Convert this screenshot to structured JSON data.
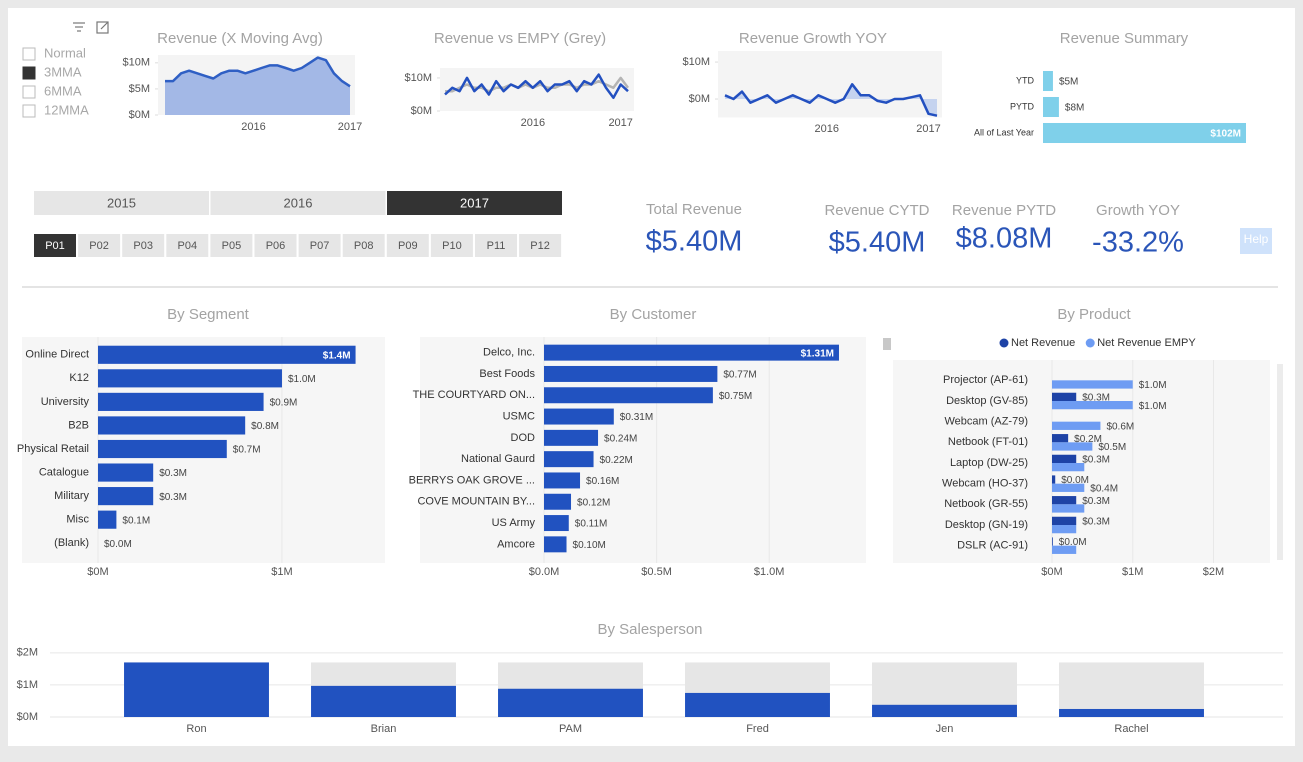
{
  "slicer": {
    "options": [
      "Normal",
      "3MMA",
      "6MMA",
      "12MMA"
    ],
    "selected": 1
  },
  "years": {
    "options": [
      "2015",
      "2016",
      "2017"
    ],
    "selected": 2
  },
  "periods": {
    "options": [
      "P01",
      "P02",
      "P03",
      "P04",
      "P05",
      "P06",
      "P07",
      "P08",
      "P09",
      "P10",
      "P11",
      "P12"
    ],
    "selected": 0
  },
  "kpis": [
    {
      "label": "Total Revenue",
      "value": "$5.40M"
    },
    {
      "label": "Revenue CYTD",
      "value": "$5.40M"
    },
    {
      "label": "Revenue PYTD",
      "value": "$8.08M"
    },
    {
      "label": "Growth YOY",
      "value": "-33.2%"
    }
  ],
  "help": "Help",
  "chart_data": [
    {
      "type": "area",
      "title": "Revenue (X Moving Avg)",
      "color": "#2f5fc4",
      "area_color": "#a3b8e6",
      "categories": [
        null,
        null,
        null,
        null,
        null,
        null,
        null,
        null,
        null,
        null,
        null,
        "2016",
        null,
        null,
        null,
        null,
        null,
        null,
        null,
        null,
        null,
        null,
        null,
        "2017"
      ],
      "values": [
        6.5,
        6.5,
        8,
        8.5,
        8,
        7.5,
        7,
        8,
        8.5,
        8.5,
        8,
        8.5,
        9,
        9.5,
        9.5,
        9,
        8.5,
        9,
        10,
        11,
        10.5,
        8,
        6.5,
        5.5
      ],
      "ylim": [
        0,
        11.5
      ],
      "yticks": [
        {
          "value": 0,
          "label": "$0M"
        },
        {
          "value": 5,
          "label": "$5M"
        },
        {
          "value": 10,
          "label": "$10M"
        }
      ]
    },
    {
      "type": "line",
      "title": "Revenue vs EMPY (Grey)",
      "categories": [
        null,
        null,
        null,
        null,
        null,
        null,
        null,
        null,
        null,
        null,
        null,
        null,
        "2016",
        null,
        null,
        null,
        null,
        null,
        null,
        null,
        null,
        null,
        null,
        null,
        "2017",
        null
      ],
      "series": [
        {
          "color": "#b4b4b4",
          "values": [
            6,
            6,
            7,
            8,
            7,
            7,
            6,
            7,
            7,
            8,
            7,
            8,
            7,
            8,
            7,
            7,
            8,
            8,
            7,
            8,
            8,
            9,
            8,
            7,
            10,
            7
          ]
        },
        {
          "color": "#2350c0",
          "values": [
            5,
            7,
            6,
            10,
            6,
            8,
            5,
            9,
            6,
            8,
            7,
            9,
            7,
            9,
            6,
            8,
            8,
            9,
            6,
            9,
            8,
            11,
            7,
            4,
            8,
            6
          ]
        }
      ],
      "ylim": [
        0,
        13
      ],
      "yticks": [
        {
          "value": 0,
          "label": "$0M"
        },
        {
          "value": 10,
          "label": "$10M"
        }
      ]
    },
    {
      "type": "area",
      "title": "Revenue Growth YOY",
      "color": "#2350c0",
      "area_color": "#c5d3ef",
      "categories": [
        null,
        null,
        null,
        null,
        null,
        null,
        null,
        null,
        null,
        null,
        null,
        null,
        "2016",
        null,
        null,
        null,
        null,
        null,
        null,
        null,
        null,
        null,
        null,
        null,
        "2017",
        null
      ],
      "values": [
        1,
        0,
        2,
        -1,
        0,
        1,
        -1,
        0,
        1,
        0,
        -1,
        1,
        0,
        -1,
        0,
        4,
        1,
        1,
        -0.5,
        -1,
        0,
        0,
        0.5,
        1,
        -4,
        -4.5
      ],
      "ylim": [
        -5,
        13
      ],
      "yticks": [
        {
          "value": 0,
          "label": "$0M"
        },
        {
          "value": 10,
          "label": "$10M"
        }
      ]
    },
    {
      "type": "hbar",
      "title": "Revenue Summary",
      "color": "#7fd0ea",
      "categories": [
        "YTD",
        "PYTD",
        "All of Last Year"
      ],
      "values": [
        5,
        8,
        102
      ],
      "value_labels": [
        "$5M",
        "$8M",
        "$102M"
      ]
    },
    {
      "type": "hbar",
      "title": "By Segment",
      "color": "#2152c0",
      "grid": true,
      "categories": [
        "Online Direct",
        "K12",
        "University",
        "B2B",
        "Physical Retail",
        "Catalogue",
        "Military",
        "Misc",
        "(Blank)"
      ],
      "values": [
        1.4,
        1.0,
        0.9,
        0.8,
        0.7,
        0.3,
        0.3,
        0.1,
        0.0
      ],
      "value_labels": [
        "$1.4M",
        "$1.0M",
        "$0.9M",
        "$0.8M",
        "$0.7M",
        "$0.3M",
        "$0.3M",
        "$0.1M",
        "$0.0M"
      ],
      "xlim": [
        0,
        1.56
      ],
      "xticks": [
        {
          "value": 0,
          "label": "$0M"
        },
        {
          "value": 1,
          "label": "$1M"
        }
      ]
    },
    {
      "type": "hbar",
      "title": "By Customer",
      "color": "#2152c0",
      "grid": true,
      "categories": [
        "Delco, Inc.",
        "Best Foods",
        "THE COURTYARD ON...",
        "USMC",
        "DOD",
        "National Gaurd",
        "BERRYS OAK GROVE ...",
        "COVE MOUNTAIN BY...",
        "US Army",
        "Amcore"
      ],
      "values": [
        1.31,
        0.77,
        0.75,
        0.31,
        0.24,
        0.22,
        0.16,
        0.12,
        0.11,
        0.1
      ],
      "value_labels": [
        "$1.31M",
        "$0.77M",
        "$0.75M",
        "$0.31M",
        "$0.24M",
        "$0.22M",
        "$0.16M",
        "$0.12M",
        "$0.11M",
        "$0.10M"
      ],
      "xlim": [
        0,
        1.43
      ],
      "xticks": [
        {
          "value": 0,
          "label": "$0.0M"
        },
        {
          "value": 0.5,
          "label": "$0.5M"
        },
        {
          "value": 1,
          "label": "$1.0M"
        }
      ]
    },
    {
      "type": "hbar",
      "title": "By Product",
      "grid": true,
      "legend": "top",
      "categories": [
        "Projector (AP-61)",
        "Desktop (GV-85)",
        "Webcam (AZ-79)",
        "Netbook (FT-01)",
        "Laptop (DW-25)",
        "Webcam (HO-37)",
        "Netbook (GR-55)",
        "Desktop (GN-19)",
        "DSLR (AC-91)"
      ],
      "series": [
        {
          "name": "Net Revenue",
          "color": "#1e43a6",
          "values": [
            0,
            0.3,
            0,
            0.2,
            0.3,
            0.04,
            0.3,
            0.3,
            0.01
          ],
          "value_labels": [
            null,
            "$0.3M",
            null,
            "$0.2M",
            "$0.3M",
            "$0.0M",
            "$0.3M",
            "$0.3M",
            "$0.0M"
          ]
        },
        {
          "name": "Net Revenue EMPY",
          "color": "#6e9cf3",
          "values": [
            1.0,
            1.0,
            0.6,
            0.5,
            0.4,
            0.4,
            0.4,
            0.3,
            0.3
          ],
          "value_labels": [
            "$1.0M",
            "$1.0M",
            "$0.6M",
            "$0.5M",
            null,
            "$0.4M",
            null,
            null,
            null
          ]
        }
      ],
      "xlim": [
        0,
        2.7
      ],
      "xticks": [
        {
          "value": 0,
          "label": "$0M"
        },
        {
          "value": 1,
          "label": "$1M"
        },
        {
          "value": 2,
          "label": "$2M"
        }
      ]
    },
    {
      "type": "column",
      "title": "By Salesperson",
      "grid": true,
      "categories": [
        "Ron",
        "Brian",
        "PAM",
        "Fred",
        "Jen",
        "Rachel"
      ],
      "series": [
        {
          "color": "#2152c0",
          "values": [
            1.7,
            0.97,
            0.88,
            0.75,
            0.38,
            0.25
          ]
        },
        {
          "color": "#e6e6e6",
          "values": [
            1.7,
            1.7,
            1.7,
            1.7,
            1.7,
            1.7
          ]
        }
      ],
      "ylim": [
        0,
        2.15
      ],
      "yticks": [
        {
          "value": 0,
          "label": "$0M"
        },
        {
          "value": 1,
          "label": "$1M"
        },
        {
          "value": 2,
          "label": "$2M"
        }
      ]
    }
  ]
}
